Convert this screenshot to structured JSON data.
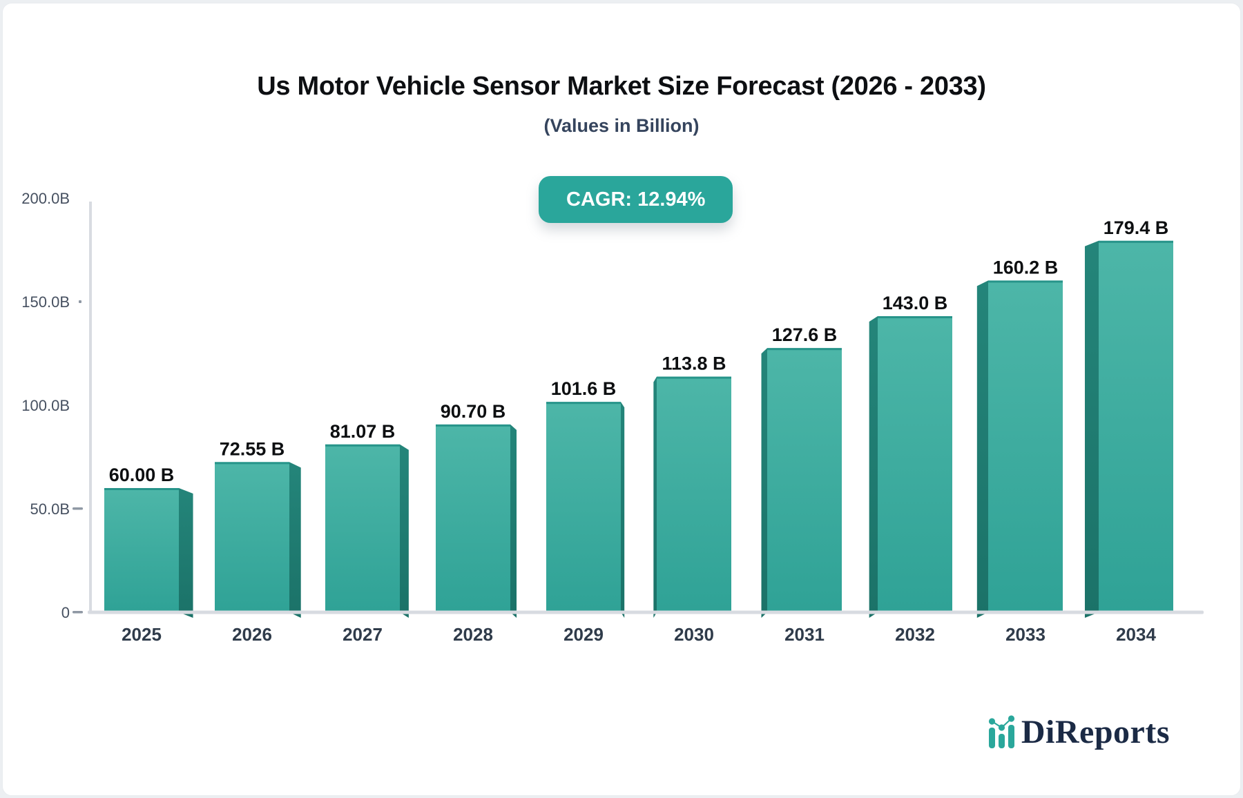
{
  "page": {
    "background": "#eceff2",
    "card_background": "#ffffff"
  },
  "header": {
    "title": "Us Motor Vehicle Sensor Market Size Forecast (2026 - 2033)",
    "subtitle": "(Values in Billion)"
  },
  "badge": {
    "label": "CAGR: 12.94%",
    "background": "#2aa69b",
    "text_color": "#ffffff"
  },
  "logo": {
    "text": "DiReports",
    "text_color": "#1b2a45",
    "accent_color": "#2aa79b"
  },
  "chart_data": {
    "type": "bar",
    "title": "Us Motor Vehicle Sensor Market Size Forecast (2026 - 2033)",
    "subtitle": "(Values in Billion)",
    "annotation": "CAGR: 12.94%",
    "categories": [
      "2025",
      "2026",
      "2027",
      "2028",
      "2029",
      "2030",
      "2031",
      "2032",
      "2033",
      "2034"
    ],
    "values": [
      60.0,
      72.55,
      81.07,
      90.7,
      101.6,
      113.8,
      127.6,
      143.0,
      160.2,
      179.4
    ],
    "value_labels": [
      "60.00 B",
      "72.55 B",
      "81.07 B",
      "90.70 B",
      "101.6 B",
      "113.8 B",
      "127.6 B",
      "143.0 B",
      "160.2 B",
      "179.4 B"
    ],
    "xlabel": "",
    "ylabel": "",
    "ylim": [
      0,
      200
    ],
    "yticks": [
      {
        "value": 0,
        "label": "0",
        "tick": "dash"
      },
      {
        "value": 50,
        "label": "50.0B",
        "tick": "dash"
      },
      {
        "value": 100,
        "label": "100.0B",
        "tick": "none"
      },
      {
        "value": 150,
        "label": "150.0B",
        "tick": "dot"
      },
      {
        "value": 200,
        "label": "200.0B",
        "tick": "none"
      }
    ],
    "grid": false,
    "legend": false,
    "colors": {
      "bar_front_top": "#4db6a8",
      "bar_front_bottom": "#2fa296",
      "bar_top_edge": "#27948a",
      "bar_side_top": "#24857a",
      "bar_side_bottom": "#1b7268",
      "axis_line": "#d8dbe1",
      "tick_mark": "#8f98a4",
      "y_label_color": "#465060",
      "x_label_color": "#2f3b4a",
      "value_label_color": "#0d0f11"
    }
  }
}
